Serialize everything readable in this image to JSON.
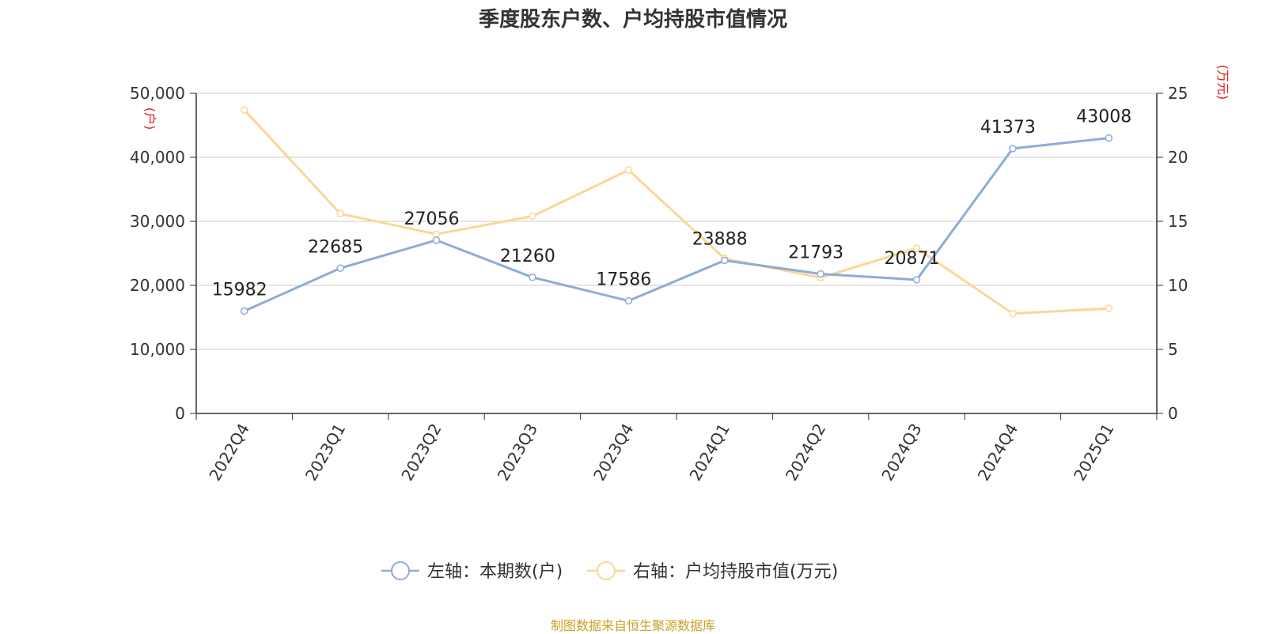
{
  "chart_data": {
    "type": "line",
    "title": "季度股东户数、户均持股市值情况",
    "categories": [
      "2022Q4",
      "2023Q1",
      "2023Q2",
      "2023Q3",
      "2023Q4",
      "2024Q1",
      "2024Q2",
      "2024Q3",
      "2024Q4",
      "2025Q1"
    ],
    "left_axis": {
      "unit": "(户)",
      "range": [
        0,
        50000
      ],
      "ticks": [
        0,
        10000,
        20000,
        30000,
        40000,
        50000
      ],
      "tick_labels": [
        "0",
        "10,000",
        "20,000",
        "30,000",
        "40,000",
        "50,000"
      ]
    },
    "right_axis": {
      "unit": "(万元)",
      "range": [
        0,
        25
      ],
      "ticks": [
        0,
        5,
        10,
        15,
        20,
        25
      ],
      "tick_labels": [
        "0",
        "5",
        "10",
        "15",
        "20",
        "25"
      ]
    },
    "series": [
      {
        "name": "左轴：本期数(户)",
        "axis": "left",
        "color": "#8eacd8",
        "values": [
          15982,
          22685,
          27056,
          21260,
          17586,
          23888,
          21793,
          20871,
          41373,
          43008
        ],
        "labels": [
          "15982",
          "22685",
          "27056",
          "21260",
          "17586",
          "23888",
          "21793",
          "20871",
          "41373",
          "43008"
        ]
      },
      {
        "name": "右轴：户均持股市值(万元)",
        "axis": "right",
        "color": "#fad797",
        "values": [
          23.7,
          15.6,
          14.0,
          15.4,
          19.0,
          12.1,
          10.6,
          12.9,
          7.8,
          8.2
        ]
      }
    ],
    "grid": true,
    "legend_position": "bottom",
    "source": "制图数据来自恒生聚源数据库"
  }
}
